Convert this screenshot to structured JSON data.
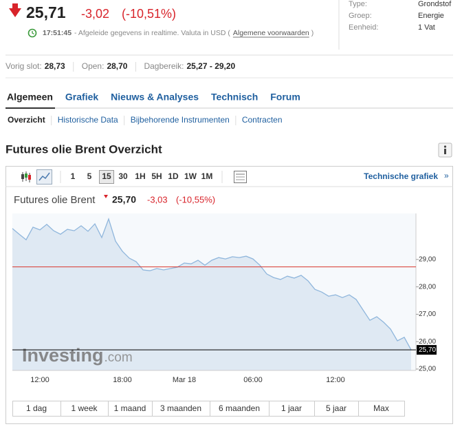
{
  "header": {
    "price": "25,71",
    "change": "-3,02",
    "change_pct": "(-10,51%)",
    "time": "17:51:45",
    "notice": "- Afgeleide gegevens in realtime. Valuta in USD (",
    "terms_link": "Algemene voorwaarden",
    "notice_end": ")"
  },
  "info": [
    {
      "label": "Type:",
      "value": "Grondstof"
    },
    {
      "label": "Groep:",
      "value": "Energie"
    },
    {
      "label": "Eenheid:",
      "value": "1 Vat"
    }
  ],
  "stats": [
    {
      "label": "Vorig slot:",
      "value": "28,73"
    },
    {
      "label": "Open:",
      "value": "28,70"
    },
    {
      "label": "Dagbereik:",
      "value": "25,27 - 29,20"
    }
  ],
  "tabs": [
    "Algemeen",
    "Grafiek",
    "Nieuws & Analyses",
    "Technisch",
    "Forum"
  ],
  "subtabs": [
    "Overzicht",
    "Historische Data",
    "Bijbehorende Instrumenten",
    "Contracten"
  ],
  "section_title": "Futures olie Brent Overzicht",
  "toolbar": {
    "intervals": [
      "1",
      "5",
      "15",
      "30",
      "1H",
      "5H",
      "1D",
      "1W",
      "1M"
    ],
    "technical_link": "Technische grafiek",
    "technical_arrow": "»"
  },
  "chart_header": {
    "name": "Futures olie Brent",
    "price": "25,70",
    "change": "-3,03",
    "change_pct": "(-10,55%)"
  },
  "watermark": {
    "brand": "Investing",
    "domain": ".com"
  },
  "chart_data": {
    "type": "area",
    "categories": [
      null,
      null,
      null,
      null,
      "12:00",
      null,
      null,
      null,
      null,
      null,
      null,
      null,
      null,
      null,
      null,
      null,
      "18:00",
      null,
      null,
      null,
      null,
      null,
      null,
      null,
      null,
      "Mar 18",
      null,
      null,
      null,
      null,
      null,
      null,
      null,
      null,
      null,
      "06:00",
      null,
      null,
      null,
      null,
      null,
      null,
      null,
      null,
      null,
      null,
      null,
      "12:00",
      null,
      null,
      null,
      null,
      null,
      null,
      null,
      null,
      null,
      null,
      null
    ],
    "values": [
      30.13,
      29.92,
      29.72,
      30.18,
      30.08,
      30.28,
      30.05,
      29.92,
      30.1,
      30.05,
      30.23,
      30.03,
      30.3,
      29.8,
      30.48,
      29.67,
      29.3,
      29.05,
      28.92,
      28.62,
      28.59,
      28.67,
      28.62,
      28.67,
      28.72,
      28.87,
      28.84,
      28.97,
      28.79,
      28.97,
      29.07,
      29.02,
      29.1,
      29.07,
      29.12,
      29.02,
      28.79,
      28.47,
      28.34,
      28.27,
      28.39,
      28.32,
      28.42,
      28.22,
      27.91,
      27.81,
      27.66,
      27.71,
      27.61,
      27.71,
      27.54,
      27.16,
      26.78,
      26.91,
      26.71,
      26.46,
      26.03,
      26.16,
      25.7
    ],
    "color": "#8fb6dc",
    "fill": "#dfe9f3",
    "ylim": [
      24.95,
      30.68
    ],
    "yticks": [
      {
        "value": 25,
        "label": "25,00"
      },
      {
        "value": 26,
        "label": "26,00"
      },
      {
        "value": 27,
        "label": "27,00"
      },
      {
        "value": 28,
        "label": "28,00"
      },
      {
        "value": 29,
        "label": "29,00"
      }
    ],
    "reference_lines": [
      {
        "value": 28.73,
        "color": "#d9342b"
      },
      {
        "value": 25.7,
        "label": "25,70",
        "color": "#000000"
      }
    ]
  },
  "ranges": [
    "1 dag",
    "1 week",
    "1 maand",
    "3 maanden",
    "6 maanden",
    "1 jaar",
    "5 jaar",
    "Max"
  ]
}
